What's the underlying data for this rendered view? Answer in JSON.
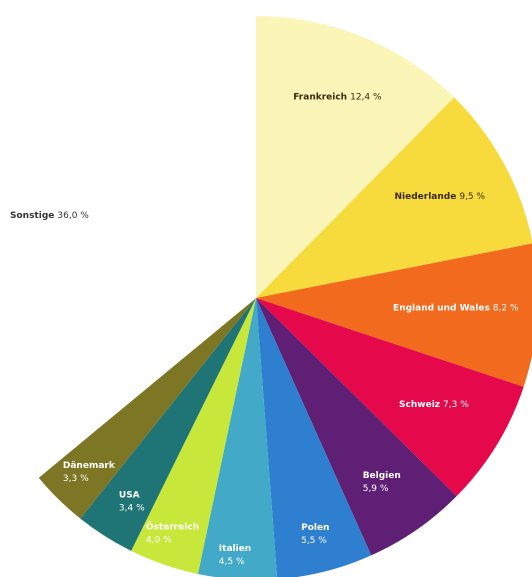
{
  "chart_data": {
    "type": "pie",
    "title": "",
    "unit": "%",
    "slices": [
      {
        "name": "Frankreich",
        "value": 12.4,
        "value_label": "12,4 %",
        "color": "#FCF5B8",
        "text_color": "#3a2a10",
        "two_line": false
      },
      {
        "name": "Niederlande",
        "value": 9.5,
        "value_label": "9,5 %",
        "color": "#F7DA3C",
        "text_color": "#3a2a10",
        "two_line": false
      },
      {
        "name": "England und Wales",
        "value": 8.2,
        "value_label": "8,2 %",
        "color": "#F26A1E",
        "text_color": "#ffffff",
        "two_line": false
      },
      {
        "name": "Schweiz",
        "value": 7.3,
        "value_label": "7,3 %",
        "color": "#E5084A",
        "text_color": "#ffffff",
        "two_line": false
      },
      {
        "name": "Belgien",
        "value": 5.9,
        "value_label": "5,9 %",
        "color": "#5E1F74",
        "text_color": "#ffffff",
        "two_line": true
      },
      {
        "name": "Polen",
        "value": 5.5,
        "value_label": "5,5 %",
        "color": "#2E7FD0",
        "text_color": "#ffffff",
        "two_line": true
      },
      {
        "name": "Italien",
        "value": 4.5,
        "value_label": "4,5 %",
        "color": "#43A9C8",
        "text_color": "#ffffff",
        "two_line": true
      },
      {
        "name": "Österreich",
        "value": 4.0,
        "value_label": "4,0 %",
        "color": "#C7E83A",
        "text_color": "#ffffff",
        "two_line": true
      },
      {
        "name": "USA",
        "value": 3.4,
        "value_label": "3,4 %",
        "color": "#1F7476",
        "text_color": "#ffffff",
        "two_line": true
      },
      {
        "name": "Dänemark",
        "value": 3.3,
        "value_label": "3,3 %",
        "color": "#7D7625",
        "text_color": "#ffffff",
        "two_line": true
      },
      {
        "name": "Sonstige",
        "value": 36.0,
        "value_label": "36,0 %",
        "color": "#ffffff",
        "text_color": "#333333",
        "two_line": false
      }
    ]
  }
}
